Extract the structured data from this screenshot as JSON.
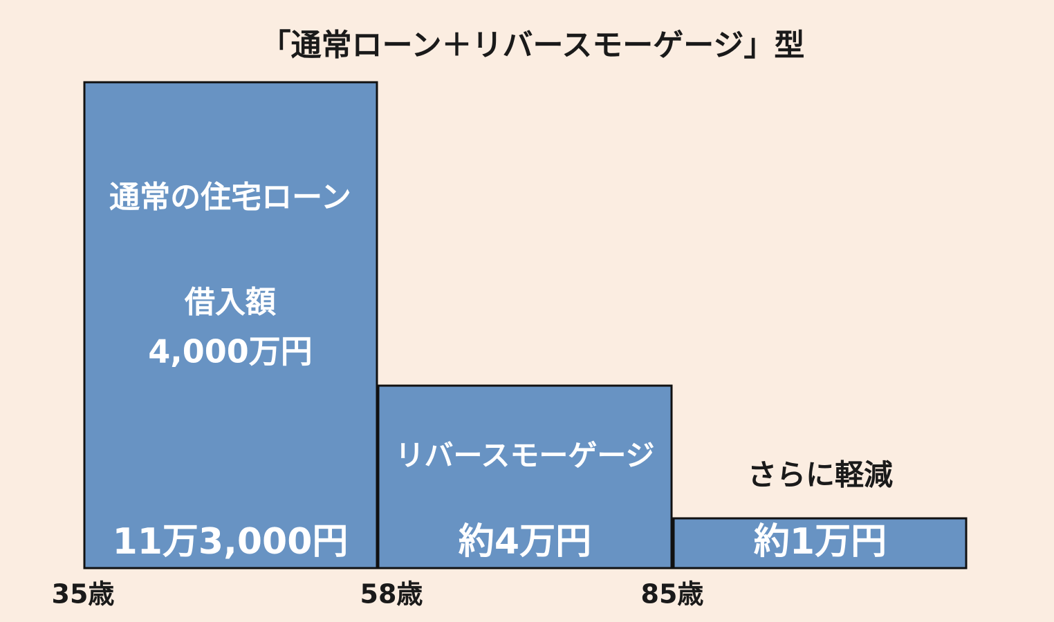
{
  "title": "「通常ローン＋リバースモーゲージ」型",
  "blocks": [
    {
      "label": "通常の住宅ローン",
      "loan_label": "借入額",
      "loan_amount": "4,000万円",
      "payment": "11万3,000円"
    },
    {
      "label": "リバースモーゲージ",
      "payment": "約4万円"
    },
    {
      "note": "さらに軽減",
      "payment": "約1万円"
    }
  ],
  "ages": [
    "35歳",
    "58歳",
    "85歳"
  ]
}
